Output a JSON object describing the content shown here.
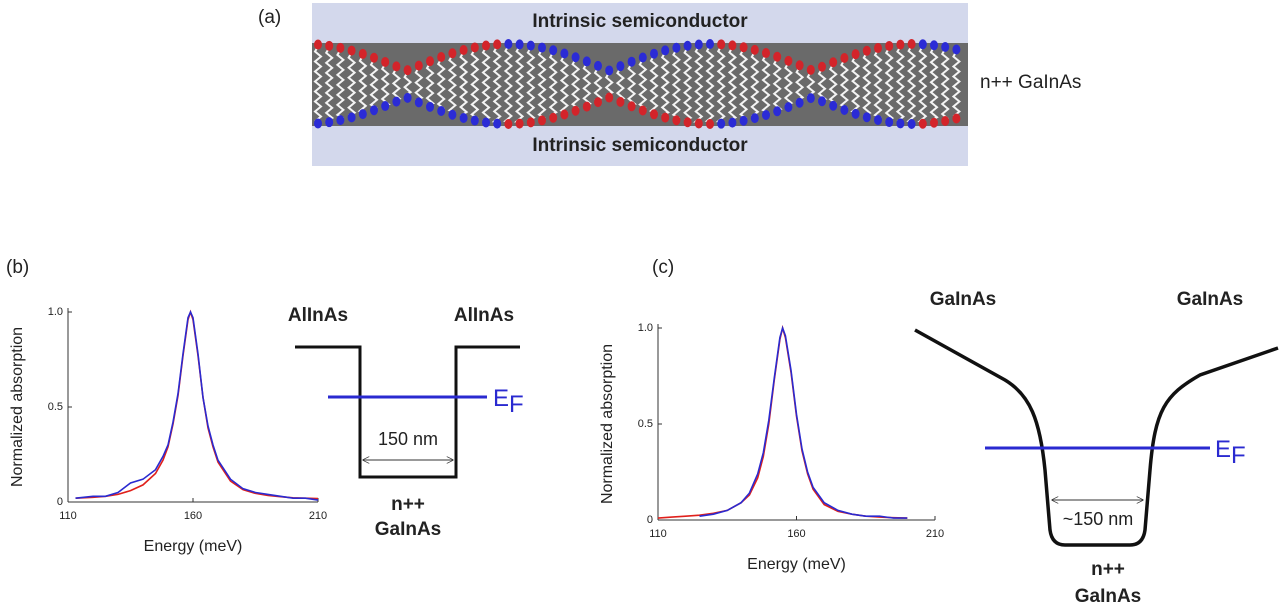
{
  "panel_labels": {
    "a": "(a)",
    "b": "(b)",
    "c": "(c)"
  },
  "panel_a": {
    "top_layer": "Intrinsic semiconductor",
    "bottom_layer": "Intrinsic semiconductor",
    "middle_layer": "n++ GaInAs"
  },
  "panel_b_diagram": {
    "left_barrier": "AlInAs",
    "right_barrier": "AlInAs",
    "fermi_main": "E",
    "fermi_sub": "F",
    "width": "150 nm",
    "well_line1": "n++",
    "well_line2": "GaInAs"
  },
  "panel_c_diagram": {
    "left_barrier": "GaInAs",
    "right_barrier": "GaInAs",
    "fermi_main": "E",
    "fermi_sub": "F",
    "width": "~150 nm",
    "well_line1": "n++",
    "well_line2": "GaInAs"
  },
  "chart_data": [
    {
      "type": "line",
      "xlabel": "Energy (meV)",
      "ylabel": "Normalized absorption",
      "x": [
        113,
        120,
        125,
        130,
        135,
        140,
        145,
        148,
        150,
        152,
        154,
        156,
        158,
        159,
        160,
        162,
        164,
        166,
        168,
        170,
        175,
        180,
        185,
        190,
        195,
        200,
        205,
        210
      ],
      "series": [
        {
          "color": "#e0201b",
          "values": [
            0.02,
            0.025,
            0.03,
            0.04,
            0.06,
            0.09,
            0.15,
            0.22,
            0.29,
            0.41,
            0.56,
            0.77,
            0.96,
            1.0,
            0.96,
            0.77,
            0.55,
            0.39,
            0.29,
            0.21,
            0.11,
            0.065,
            0.045,
            0.035,
            0.028,
            0.022,
            0.02,
            0.018
          ]
        },
        {
          "color": "#2a2ad0",
          "values": [
            0.02,
            0.03,
            0.03,
            0.05,
            0.1,
            0.12,
            0.17,
            0.24,
            0.3,
            0.42,
            0.57,
            0.78,
            0.97,
            1.0,
            0.97,
            0.78,
            0.55,
            0.4,
            0.3,
            0.22,
            0.12,
            0.07,
            0.05,
            0.04,
            0.03,
            0.02,
            0.02,
            0.01
          ]
        }
      ],
      "xlim": [
        110,
        210
      ],
      "xticks": [
        110,
        160,
        210
      ],
      "ylim": [
        0,
        1
      ],
      "yticks": [
        0,
        0.5,
        {
          "value": 1,
          "label": "1.0"
        }
      ]
    },
    {
      "type": "line",
      "xlabel": "Energy (meV)",
      "ylabel": "Normalized absorption",
      "x": [
        110,
        115,
        120,
        125,
        130,
        135,
        140,
        143,
        146,
        148,
        150,
        152,
        154,
        155,
        156,
        158,
        160,
        162,
        164,
        166,
        170,
        175,
        180,
        185,
        190,
        195,
        200
      ],
      "series": [
        {
          "color": "#e0201b",
          "values": [
            0.01,
            0.015,
            0.02,
            0.025,
            0.035,
            0.05,
            0.09,
            0.13,
            0.22,
            0.33,
            0.5,
            0.73,
            0.94,
            1.0,
            0.95,
            0.77,
            0.54,
            0.36,
            0.24,
            0.16,
            0.08,
            0.045,
            0.03,
            0.02,
            0.015,
            0.012,
            0.01
          ]
        },
        {
          "color": "#2a2ad0",
          "values": [
            null,
            null,
            null,
            0.02,
            0.03,
            0.05,
            0.09,
            0.14,
            0.24,
            0.35,
            0.52,
            0.74,
            0.95,
            1.0,
            0.96,
            0.78,
            0.55,
            0.37,
            0.25,
            0.17,
            0.09,
            0.05,
            0.03,
            0.02,
            0.02,
            0.01,
            0.01
          ]
        }
      ],
      "xlim": [
        110,
        210
      ],
      "xticks": [
        110,
        160,
        210
      ],
      "ylim": [
        0,
        1
      ],
      "yticks": [
        0,
        0.5,
        {
          "value": 1,
          "label": "1.0"
        }
      ]
    }
  ]
}
